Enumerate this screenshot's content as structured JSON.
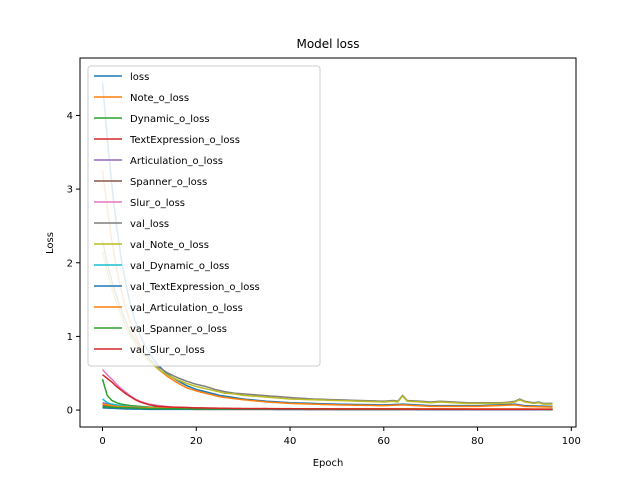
{
  "chart_data": {
    "type": "line",
    "title": "Model loss",
    "xlabel": "Epoch",
    "ylabel": "Loss",
    "xlim": [
      -4.8,
      101
    ],
    "ylim": [
      -0.23,
      4.78
    ],
    "xticks": [
      0,
      20,
      40,
      60,
      80,
      100
    ],
    "yticks": [
      0,
      1,
      2,
      3,
      4
    ],
    "grid": false,
    "legend_position": "upper left",
    "epochs": 97,
    "series": [
      {
        "name": "loss",
        "color": "#1f77b4",
        "points": [
          [
            0,
            4.45
          ],
          [
            1,
            3.7
          ],
          [
            2,
            3.05
          ],
          [
            3,
            2.5
          ],
          [
            4,
            2.05
          ],
          [
            5,
            1.7
          ],
          [
            6,
            1.42
          ],
          [
            7,
            1.2
          ],
          [
            8,
            1.02
          ],
          [
            9,
            0.88
          ],
          [
            10,
            0.77
          ],
          [
            12,
            0.6
          ],
          [
            14,
            0.48
          ],
          [
            16,
            0.4
          ],
          [
            18,
            0.33
          ],
          [
            20,
            0.28
          ],
          [
            25,
            0.2
          ],
          [
            30,
            0.15
          ],
          [
            35,
            0.12
          ],
          [
            40,
            0.1
          ],
          [
            50,
            0.08
          ],
          [
            60,
            0.07
          ],
          [
            64,
            0.08
          ],
          [
            70,
            0.06
          ],
          [
            80,
            0.06
          ],
          [
            88,
            0.08
          ],
          [
            90,
            0.06
          ],
          [
            96,
            0.05
          ]
        ]
      },
      {
        "name": "Note_o_loss",
        "color": "#ff7f0e",
        "points": [
          [
            0,
            3.25
          ],
          [
            1,
            2.75
          ],
          [
            2,
            2.3
          ],
          [
            3,
            1.92
          ],
          [
            4,
            1.62
          ],
          [
            5,
            1.38
          ],
          [
            6,
            1.18
          ],
          [
            7,
            1.02
          ],
          [
            8,
            0.88
          ],
          [
            9,
            0.77
          ],
          [
            10,
            0.68
          ],
          [
            12,
            0.55
          ],
          [
            14,
            0.45
          ],
          [
            16,
            0.37
          ],
          [
            18,
            0.3
          ],
          [
            20,
            0.26
          ],
          [
            25,
            0.18
          ],
          [
            30,
            0.14
          ],
          [
            35,
            0.11
          ],
          [
            40,
            0.09
          ],
          [
            50,
            0.07
          ],
          [
            60,
            0.06
          ],
          [
            64,
            0.07
          ],
          [
            70,
            0.05
          ],
          [
            80,
            0.05
          ],
          [
            88,
            0.07
          ],
          [
            90,
            0.05
          ],
          [
            96,
            0.04
          ]
        ]
      },
      {
        "name": "Dynamic_o_loss",
        "color": "#2ca02c",
        "points": [
          [
            0,
            0.42
          ],
          [
            1,
            0.2
          ],
          [
            2,
            0.13
          ],
          [
            3,
            0.1
          ],
          [
            4,
            0.08
          ],
          [
            6,
            0.06
          ],
          [
            8,
            0.05
          ],
          [
            10,
            0.04
          ],
          [
            15,
            0.03
          ],
          [
            20,
            0.02
          ],
          [
            30,
            0.015
          ],
          [
            50,
            0.01
          ],
          [
            96,
            0.01
          ]
        ]
      },
      {
        "name": "TextExpression_o_loss",
        "color": "#d62728",
        "points": [
          [
            0,
            0.04
          ],
          [
            5,
            0.02
          ],
          [
            10,
            0.015
          ],
          [
            20,
            0.01
          ],
          [
            96,
            0.005
          ]
        ]
      },
      {
        "name": "Articulation_o_loss",
        "color": "#9467bd",
        "points": [
          [
            0,
            0.1
          ],
          [
            2,
            0.07
          ],
          [
            4,
            0.05
          ],
          [
            6,
            0.04
          ],
          [
            10,
            0.03
          ],
          [
            20,
            0.02
          ],
          [
            40,
            0.015
          ],
          [
            96,
            0.01
          ]
        ]
      },
      {
        "name": "Spanner_o_loss",
        "color": "#8c564b",
        "points": [
          [
            0,
            0.06
          ],
          [
            3,
            0.04
          ],
          [
            6,
            0.03
          ],
          [
            10,
            0.02
          ],
          [
            20,
            0.015
          ],
          [
            96,
            0.01
          ]
        ]
      },
      {
        "name": "Slur_o_loss",
        "color": "#e377c2",
        "points": [
          [
            0,
            0.55
          ],
          [
            1,
            0.48
          ],
          [
            2,
            0.42
          ],
          [
            3,
            0.35
          ],
          [
            4,
            0.29
          ],
          [
            5,
            0.24
          ],
          [
            6,
            0.19
          ],
          [
            7,
            0.15
          ],
          [
            8,
            0.12
          ],
          [
            9,
            0.1
          ],
          [
            10,
            0.08
          ],
          [
            12,
            0.06
          ],
          [
            15,
            0.04
          ],
          [
            20,
            0.03
          ],
          [
            30,
            0.02
          ],
          [
            50,
            0.015
          ],
          [
            96,
            0.01
          ]
        ]
      },
      {
        "name": "val_loss",
        "color": "#7f7f7f",
        "points": [
          [
            0,
            2.3
          ],
          [
            1,
            2.0
          ],
          [
            2,
            1.75
          ],
          [
            3,
            1.55
          ],
          [
            4,
            1.35
          ],
          [
            5,
            1.2
          ],
          [
            6,
            1.05
          ],
          [
            7,
            0.95
          ],
          [
            8,
            0.85
          ],
          [
            9,
            0.77
          ],
          [
            10,
            0.7
          ],
          [
            12,
            0.58
          ],
          [
            14,
            0.5
          ],
          [
            16,
            0.44
          ],
          [
            18,
            0.39
          ],
          [
            20,
            0.35
          ],
          [
            22,
            0.32
          ],
          [
            24,
            0.28
          ],
          [
            26,
            0.25
          ],
          [
            28,
            0.23
          ],
          [
            30,
            0.22
          ],
          [
            32,
            0.21
          ],
          [
            34,
            0.2
          ],
          [
            36,
            0.19
          ],
          [
            38,
            0.18
          ],
          [
            40,
            0.17
          ],
          [
            45,
            0.15
          ],
          [
            50,
            0.14
          ],
          [
            55,
            0.13
          ],
          [
            60,
            0.12
          ],
          [
            62,
            0.13
          ],
          [
            63,
            0.12
          ],
          [
            64,
            0.2
          ],
          [
            65,
            0.13
          ],
          [
            68,
            0.12
          ],
          [
            70,
            0.11
          ],
          [
            72,
            0.12
          ],
          [
            75,
            0.11
          ],
          [
            78,
            0.1
          ],
          [
            80,
            0.1
          ],
          [
            85,
            0.1
          ],
          [
            87,
            0.11
          ],
          [
            88,
            0.12
          ],
          [
            89,
            0.15
          ],
          [
            90,
            0.12
          ],
          [
            92,
            0.1
          ],
          [
            93,
            0.11
          ],
          [
            94,
            0.09
          ],
          [
            96,
            0.09
          ]
        ]
      },
      {
        "name": "val_Note_o_loss",
        "color": "#bcbd22",
        "points": [
          [
            0,
            2.15
          ],
          [
            1,
            1.88
          ],
          [
            2,
            1.65
          ],
          [
            3,
            1.45
          ],
          [
            4,
            1.28
          ],
          [
            5,
            1.13
          ],
          [
            6,
            1.0
          ],
          [
            7,
            0.9
          ],
          [
            8,
            0.81
          ],
          [
            9,
            0.73
          ],
          [
            10,
            0.66
          ],
          [
            12,
            0.55
          ],
          [
            14,
            0.47
          ],
          [
            16,
            0.41
          ],
          [
            18,
            0.36
          ],
          [
            20,
            0.32
          ],
          [
            22,
            0.29
          ],
          [
            24,
            0.26
          ],
          [
            26,
            0.23
          ],
          [
            28,
            0.22
          ],
          [
            30,
            0.2
          ],
          [
            32,
            0.19
          ],
          [
            34,
            0.18
          ],
          [
            36,
            0.17
          ],
          [
            38,
            0.16
          ],
          [
            40,
            0.15
          ],
          [
            45,
            0.14
          ],
          [
            50,
            0.13
          ],
          [
            55,
            0.12
          ],
          [
            60,
            0.11
          ],
          [
            62,
            0.12
          ],
          [
            63,
            0.11
          ],
          [
            64,
            0.19
          ],
          [
            65,
            0.12
          ],
          [
            68,
            0.11
          ],
          [
            70,
            0.1
          ],
          [
            72,
            0.11
          ],
          [
            75,
            0.1
          ],
          [
            78,
            0.09
          ],
          [
            80,
            0.09
          ],
          [
            85,
            0.09
          ],
          [
            87,
            0.1
          ],
          [
            88,
            0.11
          ],
          [
            89,
            0.14
          ],
          [
            90,
            0.11
          ],
          [
            92,
            0.09
          ],
          [
            93,
            0.1
          ],
          [
            94,
            0.08
          ],
          [
            96,
            0.08
          ]
        ]
      },
      {
        "name": "val_Dynamic_o_loss",
        "color": "#17becf",
        "points": [
          [
            0,
            0.15
          ],
          [
            1,
            0.1
          ],
          [
            2,
            0.08
          ],
          [
            3,
            0.07
          ],
          [
            5,
            0.05
          ],
          [
            8,
            0.04
          ],
          [
            10,
            0.03
          ],
          [
            20,
            0.02
          ],
          [
            40,
            0.015
          ],
          [
            96,
            0.01
          ]
        ]
      },
      {
        "name": "val_TextExpression_o_loss",
        "color": "#1f77b4",
        "points": [
          [
            0,
            0.03
          ],
          [
            5,
            0.015
          ],
          [
            10,
            0.01
          ],
          [
            96,
            0.005
          ]
        ]
      },
      {
        "name": "val_Articulation_o_loss",
        "color": "#ff7f0e",
        "points": [
          [
            0,
            0.08
          ],
          [
            3,
            0.05
          ],
          [
            6,
            0.04
          ],
          [
            10,
            0.03
          ],
          [
            20,
            0.02
          ],
          [
            96,
            0.015
          ]
        ]
      },
      {
        "name": "val_Spanner_o_loss",
        "color": "#2ca02c",
        "points": [
          [
            0,
            0.05
          ],
          [
            3,
            0.035
          ],
          [
            6,
            0.03
          ],
          [
            10,
            0.02
          ],
          [
            20,
            0.015
          ],
          [
            96,
            0.01
          ]
        ]
      },
      {
        "name": "val_Slur_o_loss",
        "color": "#d62728",
        "points": [
          [
            0,
            0.48
          ],
          [
            1,
            0.43
          ],
          [
            2,
            0.38
          ],
          [
            3,
            0.32
          ],
          [
            4,
            0.27
          ],
          [
            5,
            0.22
          ],
          [
            6,
            0.18
          ],
          [
            7,
            0.14
          ],
          [
            8,
            0.11
          ],
          [
            9,
            0.09
          ],
          [
            10,
            0.07
          ],
          [
            12,
            0.05
          ],
          [
            15,
            0.04
          ],
          [
            20,
            0.03
          ],
          [
            30,
            0.02
          ],
          [
            50,
            0.015
          ],
          [
            96,
            0.01
          ]
        ]
      }
    ]
  }
}
